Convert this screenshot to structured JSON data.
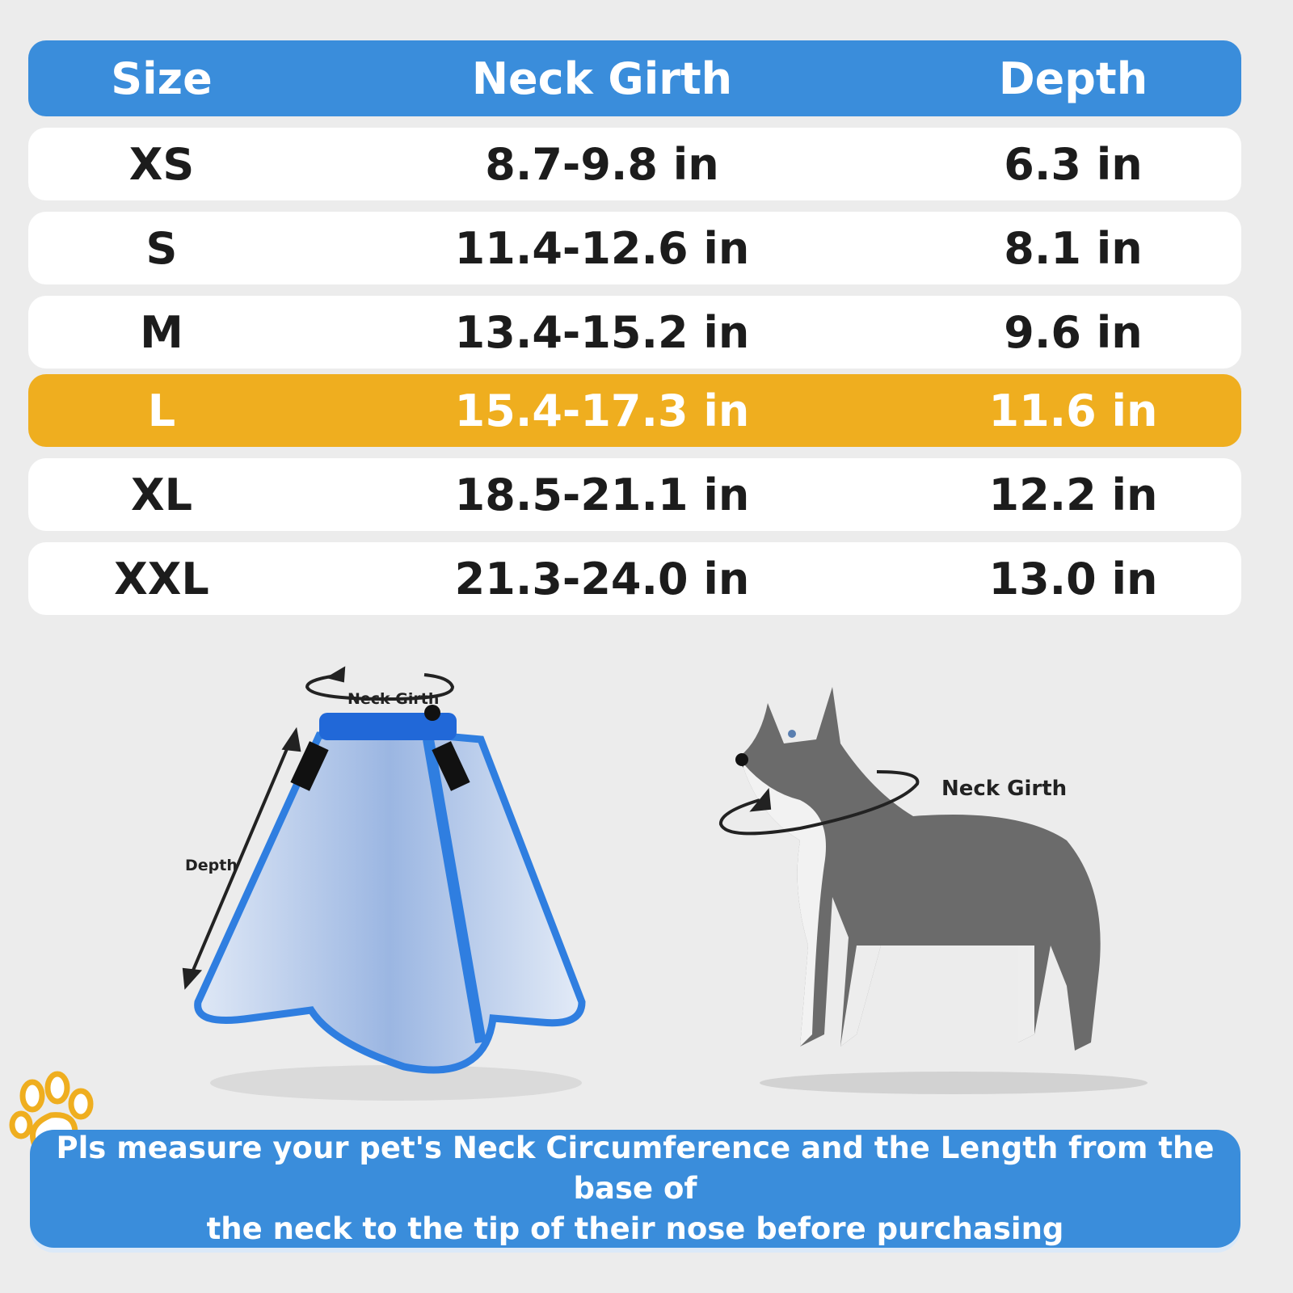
{
  "table": {
    "headers": [
      "Size",
      "Neck Girth",
      "Depth"
    ],
    "rows": [
      {
        "size": "XS",
        "neck_girth": "8.7-9.8 in",
        "depth": "6.3 in",
        "highlighted": false
      },
      {
        "size": "S",
        "neck_girth": "11.4-12.6 in",
        "depth": "8.1 in",
        "highlighted": false
      },
      {
        "size": "M",
        "neck_girth": "13.4-15.2 in",
        "depth": "9.6 in",
        "highlighted": false
      },
      {
        "size": "L",
        "neck_girth": "15.4-17.3 in",
        "depth": "11.6 in",
        "highlighted": true
      },
      {
        "size": "XL",
        "neck_girth": "18.5-21.1 in",
        "depth": "12.2 in",
        "highlighted": false
      },
      {
        "size": "XXL",
        "neck_girth": "21.3-24.0 in",
        "depth": "13.0 in",
        "highlighted": false
      }
    ]
  },
  "illustrations": {
    "cone_neck_label": "Neck Girth",
    "cone_depth_label": "Depth",
    "dog_neck_label": "Neck Girth"
  },
  "banner": {
    "line1": "Pls measure your pet's Neck Circumference and the Length from the base of",
    "line2": "the neck to the tip of their nose before purchasing",
    "icon": "paw-icon"
  },
  "colors": {
    "header": "#3a8ddb",
    "highlight": "#efae1f",
    "paw": "#efae1f"
  }
}
